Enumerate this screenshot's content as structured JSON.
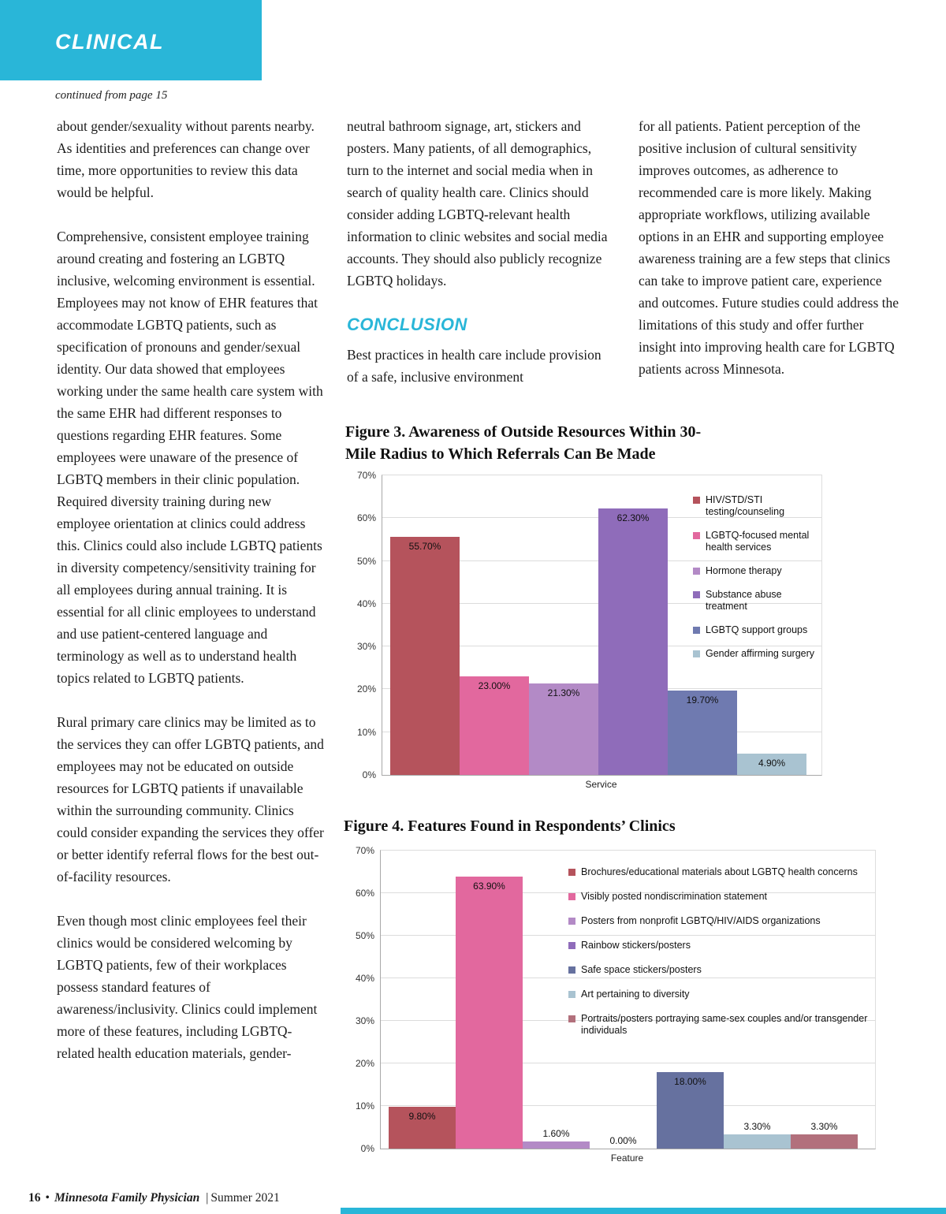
{
  "banner": {
    "label": "CLINICAL"
  },
  "continued_note": "continued from page 15",
  "article": {
    "col1": [
      "about gender/sexuality without parents nearby. As identities and preferences can change over time, more opportunities to review this data would be helpful.",
      "Comprehensive, consistent employee training around creating and fostering an LGBTQ inclusive, welcoming environment is essential. Employees may not know of EHR features that accommodate LGBTQ patients, such as specification of pronouns and gender/sexual identity. Our data showed that employees working under the same health care system with the same EHR had different responses to questions regarding EHR features. Some employees were unaware of the presence of LGBTQ members in their clinic population. Required diversity training during new employee orientation at clinics could address this. Clinics could also include LGBTQ patients in diversity competency/sensitivity training for all employees during annual training. It is essential for all clinic employees to understand and use patient-centered language and terminology as well as to understand health topics related to LGBTQ patients.",
      "Rural primary care clinics may be limited as to the services they can offer LGBTQ patients, and employees may not be educated on outside resources for LGBTQ patients if unavailable within the surrounding community. Clinics could consider expanding the services they offer or better identify referral flows for the best out-of-facility resources.",
      "Even though most clinic employees feel their clinics would be considered welcoming by LGBTQ patients, few of their workplaces possess standard features of awareness/inclusivity. Clinics could implement more of these features, including LGBTQ-related health education materials, gender-"
    ],
    "col2": {
      "para": "neutral bathroom signage, art, stickers and posters. Many patients, of all demographics, turn to the internet and social media when in search of quality health care. Clinics should consider adding LGBTQ-relevant health information to clinic websites and social media accounts. They should also publicly recognize LGBTQ holidays.",
      "conclusion_heading": "CONCLUSION",
      "para_after": "Best practices in health care include provision of a safe, inclusive environment"
    },
    "col3": [
      "for all patients. Patient perception of the positive inclusion of cultural sensitivity improves outcomes, as adherence to recommended care is more likely. Making appropriate workflows, utilizing available options in an EHR and supporting employee awareness training are a few steps that clinics can take to improve patient care, experience and outcomes. Future studies could address the limitations of this study and offer further insight into improving health care for LGBTQ patients across Minnesota."
    ]
  },
  "figures": {
    "fig3_title": "Figure 3. Awareness of Outside Resources Within 30-Mile Radius to Which Referrals Can Be Made",
    "fig4_title": "Figure 4. Features Found in Respondents’ Clinics"
  },
  "footer": {
    "page_number": "16",
    "bullet": "•",
    "journal": "Minnesota Family Physician",
    "separator": "|",
    "issue": "Summer 2021"
  },
  "theme": {
    "accent_cyan": "#29b6d8"
  },
  "chart_data": [
    {
      "id": "figure3",
      "type": "bar",
      "title": "Figure 3. Awareness of Outside Resources Within 30-Mile Radius to Which Referrals Can Be Made",
      "xlabel": "Service",
      "ylabel": "",
      "ylim": [
        0,
        70
      ],
      "ytick_step": 10,
      "grid": true,
      "legend_position": "right",
      "categories": [
        "HIV/STD/STI testing/counseling",
        "LGBTQ-focused mental health services",
        "Hormone therapy",
        "Substance abuse treatment",
        "LGBTQ support groups",
        "Gender affirming surgery"
      ],
      "values": [
        55.7,
        23.0,
        21.3,
        62.3,
        19.7,
        4.9
      ],
      "labels": [
        "55.70%",
        "23.00%",
        "21.30%",
        "62.30%",
        "19.70%",
        "4.90%"
      ],
      "colors": [
        "#b5535c",
        "#e2689e",
        "#b38ac6",
        "#8f6cba",
        "#6f7ab0",
        "#a9c3d1"
      ]
    },
    {
      "id": "figure4",
      "type": "bar",
      "title": "Figure 4. Features Found in Respondents’ Clinics",
      "xlabel": "Feature",
      "ylabel": "",
      "ylim": [
        0,
        70
      ],
      "ytick_step": 10,
      "grid": true,
      "legend_position": "right",
      "categories": [
        "Brochures/educational materials about LGBTQ health concerns",
        "Visibly posted nondiscrimination statement",
        "Posters from nonprofit LGBTQ/HIV/AIDS organizations",
        "Rainbow stickers/posters",
        "Safe space stickers/posters",
        "Art pertaining to diversity",
        "Portraits/posters portraying same-sex couples and/or transgender individuals"
      ],
      "values": [
        9.8,
        63.9,
        1.6,
        0.0,
        18.0,
        3.3,
        3.3
      ],
      "labels": [
        "9.80%",
        "63.90%",
        "1.60%",
        "0.00%",
        "18.00%",
        "3.30%",
        "3.30%"
      ],
      "colors": [
        "#b5535c",
        "#e2689e",
        "#b38ac6",
        "#8f6cba",
        "#66719f",
        "#a9c3d1",
        "#b2707c"
      ]
    }
  ]
}
